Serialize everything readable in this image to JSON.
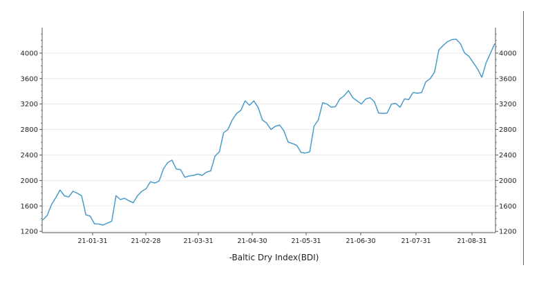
{
  "chart_data": {
    "type": "line",
    "caption": "-Baltic Dry Index(BDI)",
    "x_tick_labels": [
      "21-01-31",
      "21-02-28",
      "21-03-31",
      "21-04-30",
      "21-05-31",
      "21-06-30",
      "21-07-31",
      "21-08-31"
    ],
    "ylim": [
      1180,
      4400
    ],
    "y_ticks": [
      1200,
      1600,
      2000,
      2400,
      2800,
      3200,
      3600,
      4000
    ],
    "grid": true,
    "legend": "none",
    "line_color": "#4a9ac9",
    "series": [
      {
        "values": [
          1380,
          1450,
          1620,
          1730,
          1850,
          1760,
          1740,
          1830,
          1800,
          1760,
          1460,
          1440,
          1320,
          1315,
          1300,
          1330,
          1360,
          1760,
          1700,
          1720,
          1680,
          1650,
          1760,
          1830,
          1870,
          1980,
          1960,
          1990,
          2180,
          2280,
          2320,
          2180,
          2170,
          2050,
          2070,
          2080,
          2100,
          2080,
          2130,
          2150,
          2380,
          2450,
          2750,
          2800,
          2950,
          3050,
          3100,
          3250,
          3180,
          3250,
          3150,
          2950,
          2900,
          2800,
          2850,
          2870,
          2780,
          2600,
          2580,
          2550,
          2440,
          2430,
          2450,
          2850,
          2950,
          3220,
          3200,
          3150,
          3160,
          3280,
          3330,
          3410,
          3300,
          3250,
          3200,
          3280,
          3300,
          3240,
          3060,
          3050,
          3060,
          3200,
          3210,
          3150,
          3280,
          3270,
          3380,
          3370,
          3380,
          3550,
          3600,
          3700,
          4050,
          4120,
          4180,
          4210,
          4220,
          4150,
          4000,
          3950,
          3850,
          3750,
          3620,
          3850,
          4000,
          4150
        ]
      }
    ]
  }
}
